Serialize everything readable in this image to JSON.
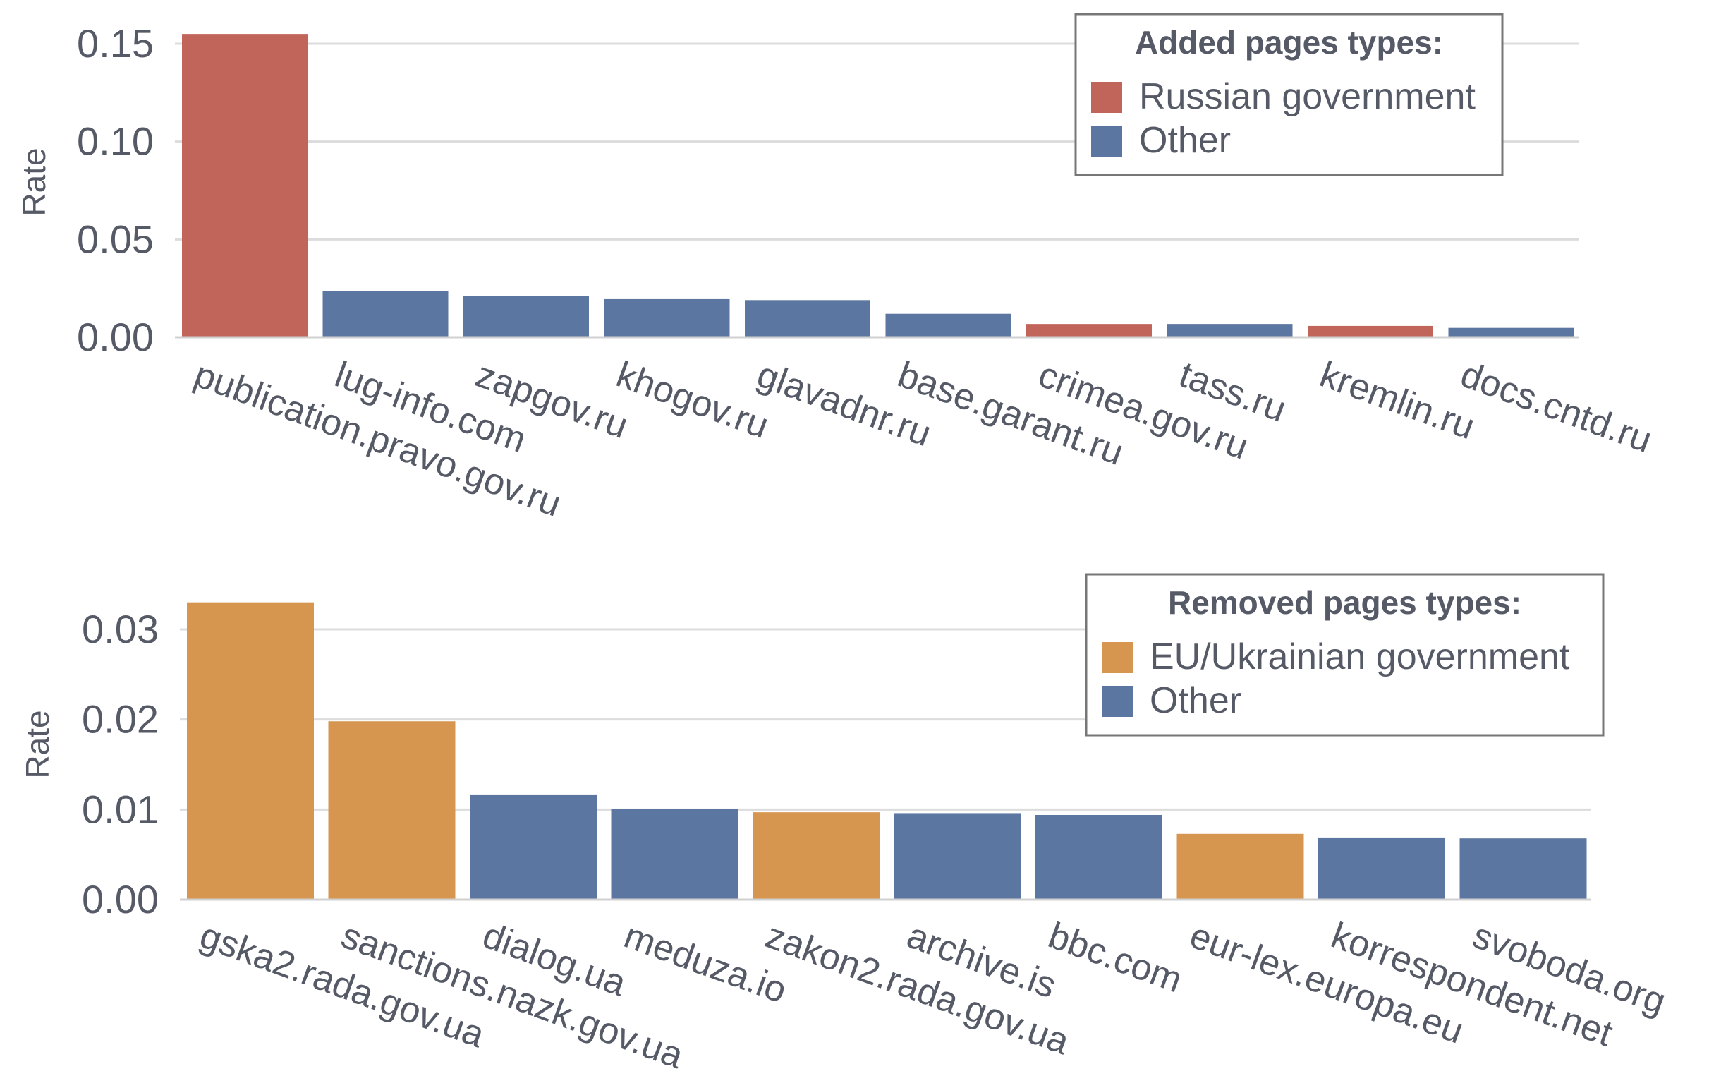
{
  "chart_data": [
    {
      "type": "bar",
      "ylabel": "Rate",
      "ylim": [
        0,
        0.16
      ],
      "yticks": [
        "0.00",
        "0.05",
        "0.10",
        "0.15"
      ],
      "categories": [
        "publication.pravo.gov.ru",
        "lug-info.com",
        "zapgov.ru",
        "khogov.ru",
        "glavadnr.ru",
        "base.garant.ru",
        "crimea.gov.ru",
        "tass.ru",
        "kremlin.ru",
        "docs.cntd.ru"
      ],
      "values": [
        0.155,
        0.0235,
        0.021,
        0.0195,
        0.019,
        0.012,
        0.0068,
        0.0068,
        0.0058,
        0.0048
      ],
      "groups": [
        "Russian government",
        "Other",
        "Other",
        "Other",
        "Other",
        "Other",
        "Russian government",
        "Other",
        "Russian government",
        "Other"
      ],
      "grid": true,
      "legend": {
        "placement": "top-right",
        "title": "Added pages types:",
        "entries": [
          {
            "label": "Russian government",
            "color": "#c1645a"
          },
          {
            "label": "Other",
            "color": "#5b76a0"
          }
        ]
      }
    },
    {
      "type": "bar",
      "ylabel": "Rate",
      "ylim": [
        0,
        0.035
      ],
      "yticks": [
        "0.00",
        "0.01",
        "0.02",
        "0.03"
      ],
      "categories": [
        "gska2.rada.gov.ua",
        "sanctions.nazk.gov.ua",
        "dialog.ua",
        "meduza.io",
        "zakon2.rada.gov.ua",
        "archive.is",
        "bbc.com",
        "eur-lex.europa.eu",
        "korrespondent.net",
        "svoboda.org"
      ],
      "values": [
        0.033,
        0.0198,
        0.0116,
        0.0101,
        0.0097,
        0.0096,
        0.0094,
        0.0073,
        0.0069,
        0.0068
      ],
      "groups": [
        "EU/Ukrainian government",
        "EU/Ukrainian government",
        "Other",
        "Other",
        "EU/Ukrainian government",
        "Other",
        "Other",
        "EU/Ukrainian government",
        "Other",
        "Other"
      ],
      "grid": true,
      "legend": {
        "placement": "top-right",
        "title": "Removed pages types:",
        "entries": [
          {
            "label": "EU/Ukrainian government",
            "color": "#d6964f"
          },
          {
            "label": "Other",
            "color": "#5b76a0"
          }
        ]
      }
    }
  ]
}
